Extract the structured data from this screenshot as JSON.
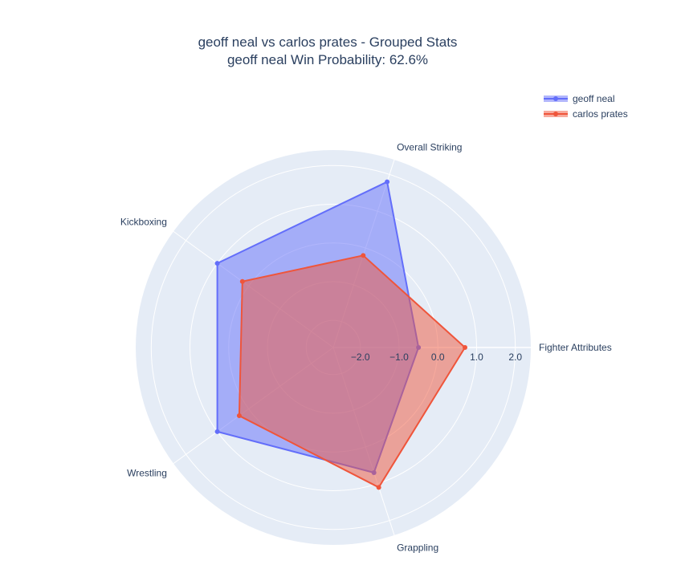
{
  "chart_data": {
    "type": "radar",
    "title": "geoff neal vs carlos prates - Grouped Stats",
    "subtitle": "geoff neal Win Probability: 62.6%",
    "categories": [
      "Fighter Attributes",
      "Overall Striking",
      "Kickboxing",
      "Wrestling",
      "Grappling"
    ],
    "radial_range": [
      -2.7,
      2.4
    ],
    "radial_ticks": [
      -2,
      -1,
      0,
      1,
      2
    ],
    "radial_tick_labels": [
      "−2.0",
      "−1.0",
      "0.0",
      "1.0",
      "2.0"
    ],
    "series": [
      {
        "name": "geoff neal",
        "values": [
          -0.5,
          1.8,
          1.0,
          1.0,
          0.7
        ],
        "color": "#636efa"
      },
      {
        "name": "carlos prates",
        "values": [
          0.7,
          -0.2,
          0.2,
          0.3,
          1.1
        ],
        "color": "#ef553b"
      }
    ],
    "legend_position": "top-right",
    "polar_background": "#e5ecf6",
    "grid": true
  }
}
